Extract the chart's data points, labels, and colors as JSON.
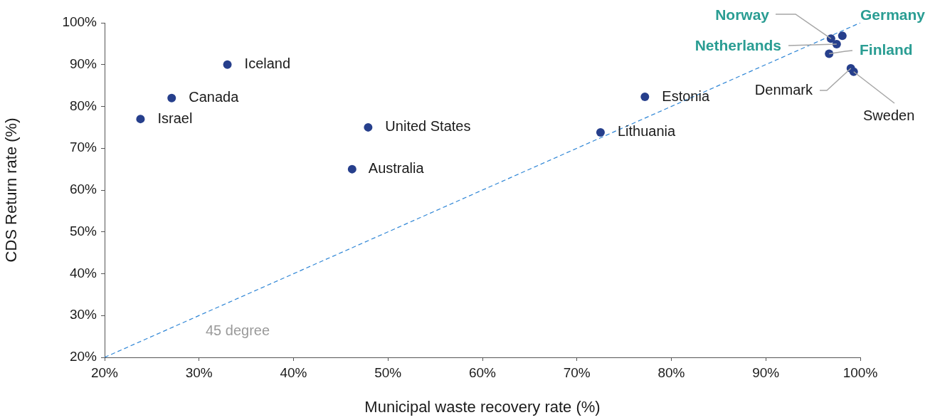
{
  "chart_data": {
    "type": "scatter",
    "xlabel": "Municipal waste recovery rate (%)",
    "ylabel": "CDS Return rate (%)",
    "xlim": [
      20,
      100
    ],
    "ylim": [
      20,
      100
    ],
    "xticks": [
      {
        "value": 20,
        "label": "20%"
      },
      {
        "value": 30,
        "label": "30%"
      },
      {
        "value": 40,
        "label": "40%"
      },
      {
        "value": 50,
        "label": "50%"
      },
      {
        "value": 60,
        "label": "60%"
      },
      {
        "value": 70,
        "label": "70%"
      },
      {
        "value": 80,
        "label": "80%"
      },
      {
        "value": 90,
        "label": "90%"
      },
      {
        "value": 100,
        "label": "100%"
      }
    ],
    "yticks": [
      {
        "value": 20,
        "label": "20%"
      },
      {
        "value": 30,
        "label": "30%"
      },
      {
        "value": 40,
        "label": "40%"
      },
      {
        "value": 50,
        "label": "50%"
      },
      {
        "value": 60,
        "label": "60%"
      },
      {
        "value": 70,
        "label": "70%"
      },
      {
        "value": 80,
        "label": "80%"
      },
      {
        "value": 90,
        "label": "90%"
      },
      {
        "value": 100,
        "label": "100%"
      }
    ],
    "grid": false,
    "legend": false,
    "marker": "circle",
    "series": [
      {
        "name": "Iceland",
        "color": "#263f8c",
        "x": [
          33.0
        ],
        "values": [
          90.0
        ]
      },
      {
        "name": "Canada",
        "color": "#263f8c",
        "x": [
          27.1
        ],
        "values": [
          82.0
        ]
      },
      {
        "name": "Israel",
        "color": "#263f8c",
        "x": [
          23.8
        ],
        "values": [
          77.0
        ]
      },
      {
        "name": "United States",
        "color": "#263f8c",
        "x": [
          47.9
        ],
        "values": [
          75.0
        ]
      },
      {
        "name": "Australia",
        "color": "#263f8c",
        "x": [
          46.2
        ],
        "values": [
          65.0
        ]
      },
      {
        "name": "Estonia",
        "color": "#263f8c",
        "x": [
          77.2
        ],
        "values": [
          82.3
        ]
      },
      {
        "name": "Lithuania",
        "color": "#263f8c",
        "x": [
          72.5
        ],
        "values": [
          73.8
        ]
      },
      {
        "name": "Norway",
        "color": "#263f8c",
        "x": [
          96.9
        ],
        "values": [
          96.2
        ]
      },
      {
        "name": "Germany",
        "color": "#263f8c",
        "x": [
          98.1
        ],
        "values": [
          96.9
        ]
      },
      {
        "name": "Netherlands",
        "color": "#263f8c",
        "x": [
          97.5
        ],
        "values": [
          94.9
        ]
      },
      {
        "name": "Finland",
        "color": "#263f8c",
        "x": [
          96.7
        ],
        "values": [
          92.6
        ]
      },
      {
        "name": "Denmark",
        "color": "#263f8c",
        "x": [
          99.0
        ],
        "values": [
          89.1
        ]
      },
      {
        "name": "Sweden",
        "color": "#263f8c",
        "x": [
          99.3
        ],
        "values": [
          88.3
        ]
      },
      {
        "type": "line",
        "color": "#2f86d6",
        "line_style": "dashed",
        "marker": "none",
        "x": [
          20,
          100
        ],
        "values": [
          20,
          100
        ]
      }
    ],
    "annotations": [
      "45 degree"
    ]
  }
}
